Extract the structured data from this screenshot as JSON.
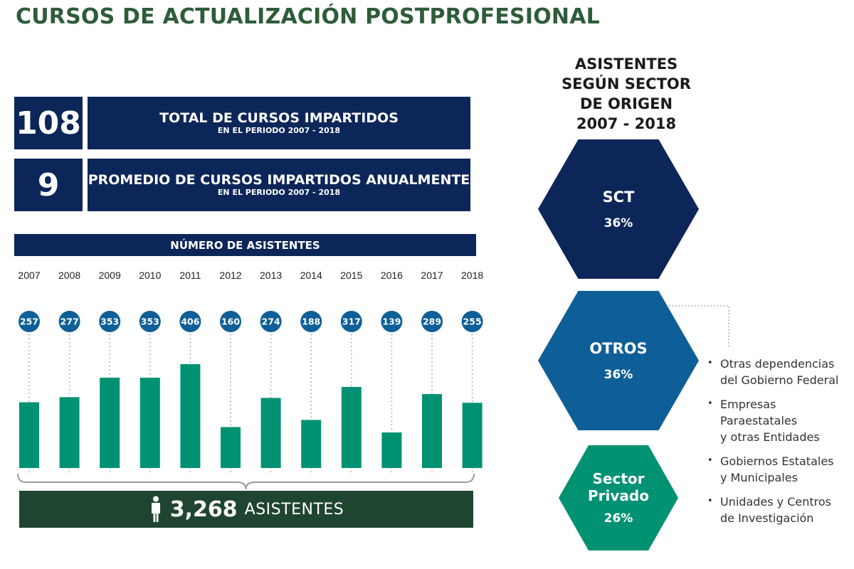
{
  "title": "CURSOS DE ACTUALIZACIÓN POSTPROFESIONAL",
  "stats": [
    {
      "value": "108",
      "label": "TOTAL DE CURSOS IMPARTIDOS",
      "sublabel": "EN EL PERIODO 2007 - 2018"
    },
    {
      "value": "9",
      "label": "PROMEDIO DE CURSOS IMPARTIDOS ANUALMENTE",
      "sublabel": "EN EL PERIODO 2007 - 2018"
    }
  ],
  "colors": {
    "navy": "#0d2659",
    "blue": "#0e5f98",
    "teal": "#009273",
    "dark_green": "#1f4530",
    "title_green": "#2e5c3a"
  },
  "chart_data": [
    {
      "type": "bar",
      "title": "NÚMERO DE ASISTENTES",
      "categories": [
        "2007",
        "2008",
        "2009",
        "2010",
        "2011",
        "2012",
        "2013",
        "2014",
        "2015",
        "2016",
        "2017",
        "2018"
      ],
      "values": [
        257,
        277,
        353,
        353,
        406,
        160,
        274,
        188,
        317,
        139,
        289,
        255
      ],
      "xlabel": "",
      "ylabel": "",
      "ylim": [
        0,
        406
      ],
      "grid": false,
      "data_labels": true
    },
    {
      "type": "pie",
      "title": "ASISTENTES SEGÚN SECTOR DE ORIGEN 2007 - 2018",
      "categories": [
        "SCT",
        "OTROS",
        "Sector Privado"
      ],
      "values": [
        36,
        36,
        26
      ]
    }
  ],
  "total": {
    "icon": "person-icon",
    "value": "3,268",
    "label": "ASISTENTES"
  },
  "sectors": {
    "title_lines": [
      "ASISTENTES",
      "SEGÚN SECTOR",
      "DE ORIGEN",
      "2007 - 2018"
    ],
    "items": [
      {
        "name": "SCT",
        "pct": "36%"
      },
      {
        "name": "OTROS",
        "pct": "36%"
      },
      {
        "name": "Sector Privado",
        "pct": "26%"
      }
    ],
    "otros_detail": [
      "Otras dependencias\ndel Gobierno Federal",
      "Empresas Paraestatales\ny otras Entidades",
      "Gobiernos Estatales\ny Municipales",
      "Unidades y Centros\nde Investigación"
    ]
  }
}
